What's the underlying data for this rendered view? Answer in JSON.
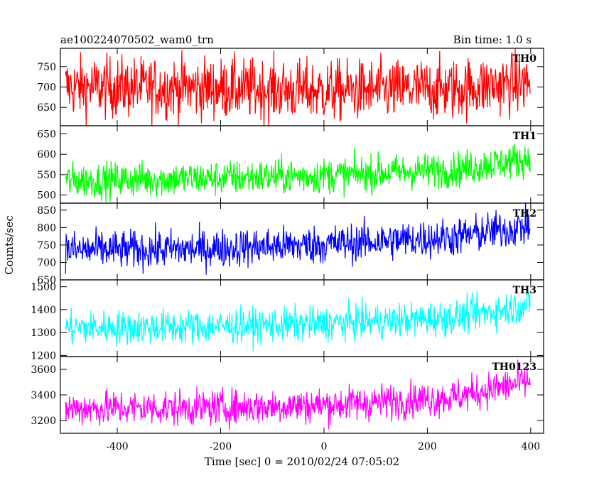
{
  "title_left": "ae100224070502_wam0_trn",
  "title_right": "Bin time: 1.0 s",
  "chart_data": {
    "type": "line",
    "title": "ae100224070502_wam0_trn",
    "subtitle": "Bin time: 1.0 s",
    "xlabel": "Time [sec] 0 = 2010/02/24 07:05:02",
    "ylabel": "Counts/sec",
    "xlim": [
      -510,
      425
    ],
    "xticks": [
      -400,
      -200,
      0,
      200,
      400
    ],
    "x_range": [
      -500,
      399
    ],
    "grid": false,
    "panels": [
      {
        "name": "TH0",
        "color": "#ff0000",
        "ylim": [
          605,
          795
        ],
        "yticks": [
          650,
          700,
          750
        ],
        "trend": [
          [
            -500,
            700
          ],
          [
            -250,
            698
          ],
          [
            0,
            690
          ],
          [
            250,
            695
          ],
          [
            400,
            712
          ]
        ],
        "noise": 38
      },
      {
        "name": "TH1",
        "color": "#00ff00",
        "ylim": [
          480,
          670
        ],
        "yticks": [
          500,
          550,
          600,
          650
        ],
        "trend": [
          [
            -500,
            535
          ],
          [
            -250,
            540
          ],
          [
            0,
            548
          ],
          [
            250,
            562
          ],
          [
            400,
            590
          ]
        ],
        "noise": 22
      },
      {
        "name": "TH2",
        "color": "#0000ff",
        "ylim": [
          650,
          870
        ],
        "yticks": [
          650,
          700,
          750,
          800,
          850
        ],
        "trend": [
          [
            -500,
            735
          ],
          [
            -250,
            738
          ],
          [
            0,
            752
          ],
          [
            250,
            772
          ],
          [
            400,
            805
          ]
        ],
        "noise": 28
      },
      {
        "name": "TH3",
        "color": "#00ffff",
        "ylim": [
          1195,
          1530
        ],
        "yticks": [
          1200,
          1300,
          1400,
          1500
        ],
        "trend": [
          [
            -500,
            1320
          ],
          [
            -250,
            1325
          ],
          [
            0,
            1338
          ],
          [
            250,
            1365
          ],
          [
            400,
            1420
          ]
        ],
        "noise": 38
      },
      {
        "name": "TH0123",
        "color": "#ff00ff",
        "ylim": [
          3100,
          3700
        ],
        "yticks": [
          3200,
          3400,
          3600
        ],
        "trend": [
          [
            -500,
            3295
          ],
          [
            -250,
            3298
          ],
          [
            0,
            3320
          ],
          [
            250,
            3380
          ],
          [
            400,
            3510
          ]
        ],
        "noise": 70
      }
    ]
  }
}
